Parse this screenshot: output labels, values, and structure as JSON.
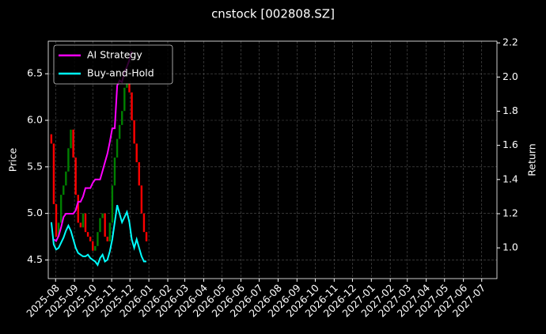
{
  "chart_data": {
    "type": "candlestick",
    "title": "cnstock [002808.SZ]",
    "ylabel": "Price",
    "y2label": "Return",
    "x": [
      "2025-07-25",
      "2025-07-29",
      "2025-08-02",
      "2025-08-06",
      "2025-08-10",
      "2025-08-14",
      "2025-08-18",
      "2025-08-22",
      "2025-08-26",
      "2025-08-30",
      "2025-09-03",
      "2025-09-07",
      "2025-09-11",
      "2025-09-15",
      "2025-09-19",
      "2025-09-23",
      "2025-09-27",
      "2025-10-01",
      "2025-10-05",
      "2025-10-09",
      "2025-10-13",
      "2025-10-17",
      "2025-10-21",
      "2025-10-25",
      "2025-10-29",
      "2025-11-02",
      "2025-11-06",
      "2025-11-10",
      "2025-11-14",
      "2025-11-18",
      "2025-11-22",
      "2025-11-26",
      "2025-11-30",
      "2025-12-04",
      "2025-12-08",
      "2025-12-12",
      "2025-12-16",
      "2025-12-20",
      "2025-12-24",
      "2025-12-28"
    ],
    "open": [
      5.85,
      5.75,
      5.1,
      4.75,
      4.9,
      5.2,
      5.3,
      5.45,
      5.7,
      5.9,
      5.6,
      5.2,
      4.9,
      4.85,
      5.0,
      4.8,
      4.75,
      4.7,
      4.6,
      4.65,
      4.8,
      4.95,
      5.0,
      4.75,
      4.7,
      4.9,
      5.3,
      5.6,
      5.8,
      5.95,
      6.1,
      6.35,
      6.4,
      6.3,
      6.0,
      5.75,
      5.55,
      5.3,
      5.0,
      4.8
    ],
    "close": [
      5.75,
      5.1,
      4.75,
      4.9,
      5.2,
      5.3,
      5.45,
      5.7,
      5.9,
      5.6,
      5.2,
      4.9,
      4.85,
      5.0,
      4.8,
      4.75,
      4.7,
      4.6,
      4.65,
      4.8,
      4.95,
      5.0,
      4.75,
      4.7,
      4.9,
      5.3,
      5.6,
      5.8,
      5.95,
      6.1,
      6.35,
      6.4,
      6.3,
      6.0,
      5.75,
      5.55,
      5.3,
      5.0,
      4.8,
      4.7
    ],
    "up_color": "#008000",
    "down_color": "#ff0000",
    "series": [
      {
        "name": "AI Strategy",
        "color": "#ff00ff",
        "axis": "y2",
        "values": [
          null,
          1.05,
          1.04,
          1.07,
          1.12,
          1.18,
          1.2,
          1.2,
          1.2,
          1.2,
          1.22,
          1.27,
          1.27,
          1.3,
          1.35,
          1.35,
          1.35,
          1.38,
          1.4,
          1.4,
          1.4,
          1.45,
          1.5,
          1.55,
          1.62,
          1.7,
          1.7,
          1.95,
          1.98,
          1.97,
          2.03,
          2.06,
          2.1,
          2.15,
          null,
          null,
          null,
          null,
          null,
          null
        ]
      },
      {
        "name": "Buy-and-Hold",
        "color": "#00ffff",
        "axis": "y2",
        "values": [
          1.15,
          1.02,
          0.99,
          1.0,
          1.03,
          1.06,
          1.1,
          1.13,
          1.1,
          1.05,
          1.0,
          0.97,
          0.96,
          0.95,
          0.95,
          0.96,
          0.94,
          0.93,
          0.92,
          0.9,
          0.94,
          0.96,
          0.92,
          0.93,
          0.98,
          1.05,
          1.15,
          1.25,
          1.2,
          1.15,
          1.18,
          1.21,
          1.15,
          1.05,
          1.0,
          1.05,
          1.0,
          0.95,
          0.92,
          0.92
        ]
      }
    ],
    "xlim": [
      "2025-07-20",
      "2027-07-26"
    ],
    "xticks": [
      "2025-08",
      "2025-09",
      "2025-10",
      "2025-11",
      "2025-12",
      "2026-01",
      "2026-02",
      "2026-03",
      "2026-04",
      "2026-05",
      "2026-06",
      "2026-07",
      "2026-08",
      "2026-09",
      "2026-10",
      "2026-11",
      "2026-12",
      "2027-01",
      "2027-02",
      "2027-03",
      "2027-04",
      "2027-05",
      "2027-06",
      "2027-07"
    ],
    "ylim": [
      4.3,
      6.85
    ],
    "yticks": [
      4.5,
      {
        "value": 5,
        "label": "5.0"
      },
      5.5,
      {
        "value": 6,
        "label": "6.0"
      },
      6.5
    ],
    "y2lim": [
      0.82,
      2.21
    ],
    "y2ticks": [
      {
        "value": 1,
        "label": "1.0"
      },
      1.2,
      1.4,
      1.6,
      1.8,
      {
        "value": 2,
        "label": "2.0"
      },
      2.2
    ],
    "grid": true,
    "legend": "upper-left"
  }
}
